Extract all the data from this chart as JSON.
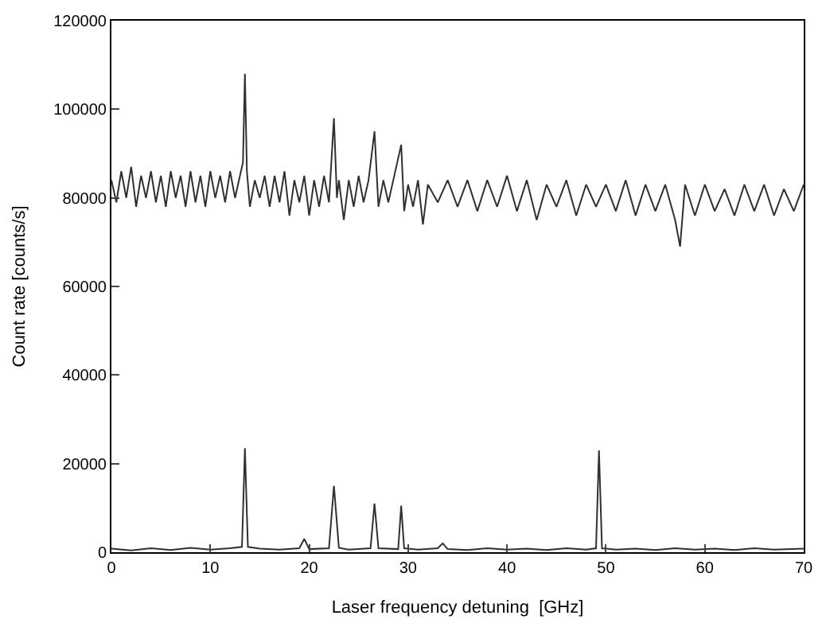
{
  "chart_data": {
    "type": "line",
    "xlabel": "Laser frequency detuning  [GHz]",
    "ylabel": "Count rate [counts/s]",
    "xlim": [
      0,
      70
    ],
    "xticks": [
      0,
      10,
      20,
      30,
      40,
      50,
      60,
      70
    ],
    "ylim": [
      0,
      120000
    ],
    "yticks": [
      0,
      20000,
      40000,
      60000,
      80000,
      100000,
      120000
    ],
    "marker": "none",
    "line_style": "solid",
    "series": [
      {
        "color": "#303030",
        "x": [
          0,
          0.5,
          1,
          1.5,
          2,
          2.5,
          3,
          3.5,
          4,
          4.5,
          5,
          5.5,
          6,
          6.5,
          7,
          7.5,
          8,
          8.5,
          9,
          9.5,
          10,
          10.5,
          11,
          11.5,
          12,
          12.5,
          13,
          13.3,
          13.5,
          13.7,
          14,
          14.5,
          15,
          15.5,
          16,
          16.5,
          17,
          17.5,
          18,
          18.5,
          19,
          19.5,
          20,
          20.5,
          21,
          21.5,
          22,
          22.5,
          22.8,
          23,
          23.5,
          24,
          24.5,
          25,
          25.5,
          26,
          26.6,
          27,
          27.5,
          28,
          28.5,
          29.3,
          29.6,
          30,
          30.5,
          31,
          31.5,
          32,
          33,
          34,
          35,
          36,
          37,
          38,
          39,
          40,
          41,
          42,
          43,
          44,
          45,
          46,
          47,
          48,
          49,
          50,
          51,
          52,
          53,
          54,
          55,
          56,
          57,
          57.5,
          58,
          59,
          60,
          61,
          62,
          63,
          64,
          65,
          66,
          67,
          68,
          69,
          70
        ],
        "values": [
          84000,
          79000,
          86000,
          80000,
          87000,
          78000,
          85000,
          80000,
          86000,
          79000,
          85000,
          78000,
          86000,
          80000,
          85000,
          78000,
          86000,
          79000,
          85000,
          78000,
          86000,
          80000,
          85000,
          79000,
          86000,
          80000,
          85000,
          88000,
          108000,
          86000,
          78000,
          84000,
          80000,
          85000,
          78000,
          85000,
          79000,
          86000,
          76000,
          84000,
          79000,
          85000,
          76000,
          84000,
          78000,
          85000,
          79000,
          98000,
          80000,
          84000,
          75000,
          84000,
          78000,
          85000,
          79000,
          84000,
          95000,
          78000,
          84000,
          79000,
          84000,
          92000,
          77000,
          83000,
          78000,
          84000,
          74000,
          83000,
          79000,
          84000,
          78000,
          84000,
          77000,
          84000,
          78000,
          85000,
          77000,
          84000,
          75000,
          83000,
          78000,
          84000,
          76000,
          83000,
          78000,
          83000,
          77000,
          84000,
          76000,
          83000,
          77000,
          83000,
          75000,
          69000,
          83000,
          76000,
          83000,
          77000,
          82000,
          76000,
          83000,
          77000,
          83000,
          76000,
          82000,
          77000,
          83000
        ]
      },
      {
        "color": "#303030",
        "x": [
          0,
          2,
          4,
          6,
          8,
          10,
          12,
          13.2,
          13.5,
          13.8,
          15,
          17,
          19,
          19.5,
          20,
          22,
          22.5,
          23,
          24,
          26.2,
          26.6,
          27,
          29,
          29.3,
          29.6,
          31,
          33,
          33.5,
          34,
          36,
          38,
          40,
          42,
          44,
          46,
          48,
          49,
          49.3,
          49.6,
          51,
          53,
          55,
          57,
          59,
          61,
          63,
          65,
          67,
          70
        ],
        "values": [
          800,
          400,
          900,
          500,
          1000,
          600,
          900,
          1200,
          23500,
          1200,
          800,
          600,
          900,
          3000,
          700,
          900,
          15000,
          1000,
          600,
          900,
          11000,
          900,
          700,
          10500,
          900,
          600,
          900,
          2000,
          700,
          500,
          900,
          600,
          800,
          500,
          900,
          600,
          900,
          23000,
          900,
          600,
          800,
          500,
          900,
          600,
          800,
          500,
          900,
          600,
          800
        ]
      }
    ]
  }
}
